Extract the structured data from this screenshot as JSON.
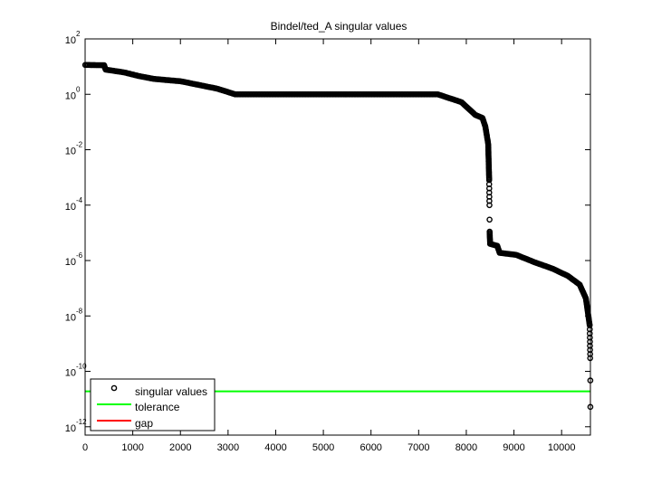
{
  "chart_data": {
    "type": "scatter",
    "title": "Bindel/ted_A singular values",
    "xlabel": "",
    "ylabel": "",
    "xlim": [
      0,
      10605
    ],
    "ylim": [
      5e-13,
      100
    ],
    "yscale": "log",
    "grid": false,
    "x_ticks": [
      0,
      1000,
      2000,
      3000,
      4000,
      5000,
      6000,
      7000,
      8000,
      9000,
      10000
    ],
    "x_tick_labels": [
      "0",
      "1000",
      "2000",
      "3000",
      "4000",
      "5000",
      "6000",
      "7000",
      "8000",
      "9000",
      "10000"
    ],
    "y_tick_exponents": [
      "2",
      "0",
      "-2",
      "-4",
      "-6",
      "-8",
      "-10",
      "-12"
    ],
    "y_tick_base": "10",
    "legend_placement": "bottom-left",
    "series": [
      {
        "name": "singular values",
        "marker": "circle",
        "color": "#000000",
        "points": [
          [
            1,
            11.5
          ],
          [
            400,
            11.2
          ],
          [
            430,
            7.8
          ],
          [
            815,
            6.2
          ],
          [
            1120,
            4.6
          ],
          [
            1440,
            3.6
          ],
          [
            2010,
            2.95
          ],
          [
            2770,
            1.6
          ],
          [
            3150,
            1.0
          ],
          [
            5000,
            1.0
          ],
          [
            7400,
            1.0
          ],
          [
            7900,
            0.52
          ],
          [
            8190,
            0.18
          ],
          [
            8340,
            0.14
          ],
          [
            8400,
            0.068
          ],
          [
            8460,
            0.016
          ],
          [
            8480,
            0.0008
          ],
          [
            8485,
            0.0001
          ],
          [
            8488,
            3e-05
          ],
          [
            8490,
            1.1e-05
          ],
          [
            8500,
            4e-06
          ],
          [
            8650,
            3.4e-06
          ],
          [
            8700,
            1.9e-06
          ],
          [
            9050,
            1.6e-06
          ],
          [
            9430,
            8.7e-07
          ],
          [
            9810,
            5.1e-07
          ],
          [
            10130,
            2.8e-07
          ],
          [
            10380,
            1.35e-07
          ],
          [
            10510,
            4.3e-08
          ],
          [
            10590,
            4.6e-09
          ],
          [
            10600,
            3e-10
          ],
          [
            10603,
            4.7e-11
          ],
          [
            10604,
            5.2e-12
          ]
        ]
      },
      {
        "name": "tolerance",
        "type": "hline",
        "y": 1.9e-11,
        "color": "#00ff00"
      },
      {
        "name": "gap",
        "type": "vline",
        "x": 10604,
        "y_range": [
          5.2e-12,
          4.7e-11
        ],
        "color": "#ff0000"
      }
    ]
  }
}
